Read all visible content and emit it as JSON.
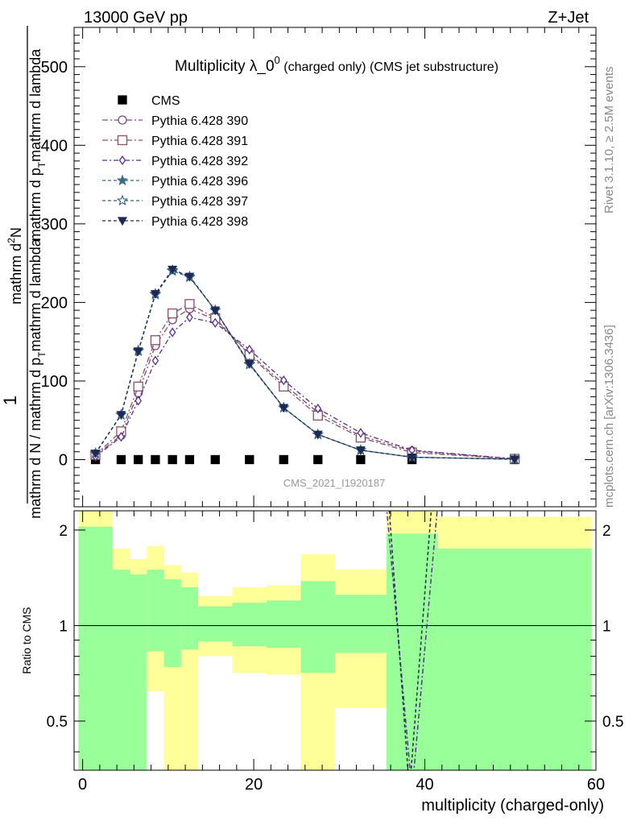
{
  "chart_data": [
    {
      "type": "line",
      "header_left": "13000 GeV pp",
      "header_right": "Z+Jet",
      "title_main": "Multiplicity λ_0",
      "title_sup": "0",
      "title_tail": "(charged only) (CMS jet substructure)",
      "ylabel": {
        "prefix": "1",
        "denominator": "mathrm d N / mathrm d p",
        "denominator_sub": "T",
        "denominator_tail": "mathrm d lambda",
        "numerator": "mathrm d",
        "numerator_sup": "2",
        "numerator_tail": "N",
        "numerator_line2": "mathrm d p",
        "numerator_line2_sub": "T",
        "numerator_line2_tail": "mathrm d lambda"
      },
      "side_label_top": "Rivet 3.1.10, ≥ 2.5M events",
      "side_label_bottom": "mcplots.cern.ch [arXiv:1306.3436]",
      "watermark": "CMS_2021_I1920187",
      "xlim": [
        -1,
        60
      ],
      "ylim": [
        -60,
        550
      ],
      "y_ticks": [
        "0",
        "100",
        "200",
        "300",
        "400",
        "500"
      ],
      "x": [
        1.5,
        4.5,
        6.5,
        8.5,
        10.5,
        12.5,
        15.5,
        19.5,
        23.5,
        27.5,
        32.5,
        38.5,
        50.5
      ],
      "series": [
        {
          "name": "CMS",
          "marker": "square-filled",
          "color": "#000000",
          "dash": "",
          "values": [
            0,
            0,
            0,
            0,
            0,
            0,
            0,
            0,
            0,
            0,
            0,
            0,
            0
          ]
        },
        {
          "name": "Pythia 6.428 390",
          "marker": "circle-open",
          "color": "#7b4a82",
          "dash": "7,3,2,3",
          "values": [
            5,
            31,
            85,
            145,
            178,
            192,
            178,
            135,
            96,
            60,
            30,
            11,
            1
          ]
        },
        {
          "name": "Pythia 6.428 391",
          "marker": "square-open",
          "color": "#8a5060",
          "dash": "7,3,2,3",
          "values": [
            6,
            36,
            93,
            152,
            186,
            198,
            180,
            133,
            93,
            56,
            28,
            9,
            1
          ]
        },
        {
          "name": "Pythia 6.428 392",
          "marker": "diamond-open",
          "color": "#5a2e8c",
          "dash": "6,3,2,3",
          "values": [
            4,
            29,
            75,
            126,
            162,
            181,
            174,
            140,
            101,
            65,
            34,
            12,
            1
          ]
        },
        {
          "name": "Pythia 6.428 396",
          "marker": "star-filled",
          "color": "#3a6e86",
          "dash": "4,3",
          "values": [
            8,
            57,
            138,
            210,
            240,
            232,
            190,
            122,
            66,
            32,
            12,
            3,
            0.5
          ]
        },
        {
          "name": "Pythia 6.428 397",
          "marker": "star-open",
          "color": "#2f5d7a",
          "dash": "4,3",
          "values": [
            8,
            57,
            139,
            211,
            241,
            233,
            190,
            121,
            66,
            32,
            12,
            3,
            0.5
          ]
        },
        {
          "name": "Pythia 6.428 398",
          "marker": "triangle-down-filled",
          "color": "#1c2a55",
          "dash": "4,3",
          "values": [
            8,
            57,
            138,
            211,
            242,
            233,
            190,
            122,
            66,
            32,
            12,
            3,
            0.5
          ]
        }
      ],
      "legend": "top-left"
    },
    {
      "type": "area",
      "ylabel": "Ratio to CMS",
      "xlabel": "multiplicity (charged-only)",
      "xlim": [
        -1,
        60
      ],
      "ylim": [
        0.35,
        2.3
      ],
      "x_ticks": [
        "0",
        "20",
        "40",
        "60"
      ],
      "y_ticks": [
        "0.5",
        "1",
        "2"
      ],
      "bins": [
        {
          "lo": -0.5,
          "hi": 3.5,
          "green": [
            0.35,
            2.05
          ],
          "yellow": [
            0.35,
            2.3
          ]
        },
        {
          "lo": 3.5,
          "hi": 5.5,
          "green": [
            0.35,
            1.5
          ],
          "yellow": [
            0.6,
            1.75
          ]
        },
        {
          "lo": 5.5,
          "hi": 7.5,
          "green": [
            0.35,
            1.45
          ],
          "yellow": [
            0.67,
            1.62
          ]
        },
        {
          "lo": 7.5,
          "hi": 9.5,
          "green": [
            0.83,
            1.5
          ],
          "yellow": [
            0.62,
            1.78
          ]
        },
        {
          "lo": 9.5,
          "hi": 11.5,
          "green": [
            0.74,
            1.4
          ],
          "yellow": [
            0.35,
            1.55
          ]
        },
        {
          "lo": 11.5,
          "hi": 13.5,
          "green": [
            0.84,
            1.32
          ],
          "yellow": [
            0.35,
            1.47
          ]
        },
        {
          "lo": 13.5,
          "hi": 17.5,
          "green": [
            0.89,
            1.15
          ],
          "yellow": [
            0.8,
            1.24
          ]
        },
        {
          "lo": 17.5,
          "hi": 21.5,
          "green": [
            0.86,
            1.18
          ],
          "yellow": [
            0.71,
            1.32
          ]
        },
        {
          "lo": 21.5,
          "hi": 25.5,
          "green": [
            0.85,
            1.2
          ],
          "yellow": [
            0.7,
            1.34
          ]
        },
        {
          "lo": 25.5,
          "hi": 29.5,
          "green": [
            0.71,
            1.38
          ],
          "yellow": [
            0.35,
            1.68
          ]
        },
        {
          "lo": 29.5,
          "hi": 35.5,
          "green": [
            0.82,
            1.25
          ],
          "yellow": [
            0.55,
            1.5
          ]
        },
        {
          "lo": 35.5,
          "hi": 41.5,
          "green": [
            0.35,
            1.95
          ],
          "yellow": [
            0.35,
            2.3
          ]
        },
        {
          "lo": 41.5,
          "hi": 59.5,
          "green": [
            0.35,
            1.75
          ],
          "yellow": [
            0.35,
            2.2
          ]
        }
      ],
      "ratio_lines": [
        {
          "x": [
            35.5,
            38.5,
            41.5
          ],
          "values": [
            2.4,
            0.3,
            2.4
          ],
          "color": "#5a2e8c",
          "dash": "6,3,2,3"
        },
        {
          "x": [
            35.8,
            38.2,
            40.8
          ],
          "values": [
            2.4,
            0.3,
            2.4
          ],
          "color": "#1c2a55",
          "dash": "4,3"
        }
      ]
    }
  ]
}
